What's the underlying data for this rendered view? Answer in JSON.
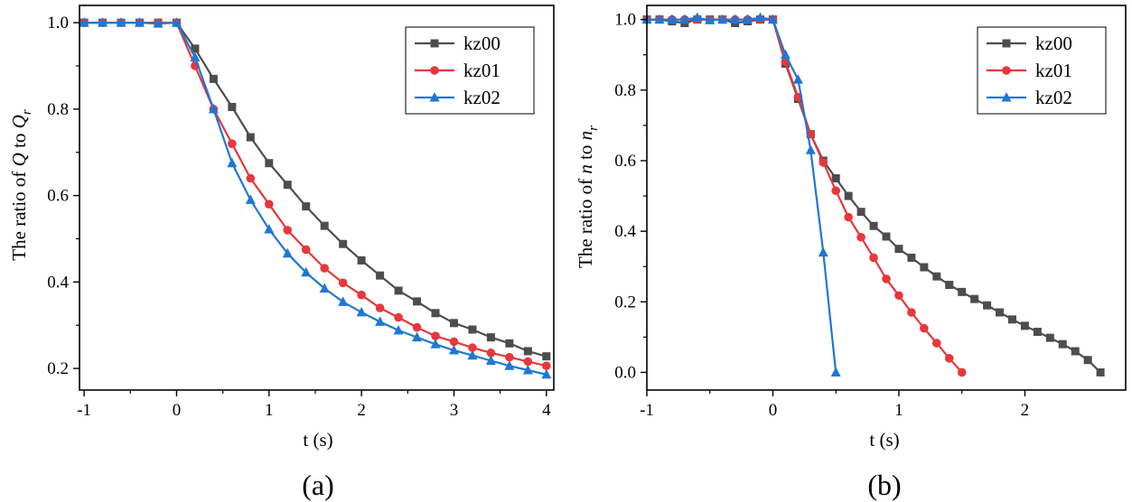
{
  "chart_data": [
    {
      "type": "line",
      "panel_label": "(a)",
      "xlabel": "t (s)",
      "ylabel": {
        "text": "The ratio of ",
        "var1": "Q",
        "mid": " to ",
        "var2": "Q",
        "sub": "r"
      },
      "xlim": [
        -1.05,
        4.08
      ],
      "ylim": [
        0.15,
        1.04
      ],
      "xticks": [
        -1,
        0,
        1,
        2,
        3,
        4
      ],
      "xtick_labels": [
        "-1",
        "0",
        "1",
        "2",
        "3",
        "4"
      ],
      "yticks": [
        0.2,
        0.4,
        0.6,
        0.8,
        1.0
      ],
      "ytick_labels": [
        "0.2",
        "0.4",
        "0.6",
        "0.8",
        "1.0"
      ],
      "legend_position": "top-right",
      "series": [
        {
          "name": "kz00",
          "color": "#4d4d4d",
          "marker": "square",
          "x": [
            -1.0,
            -0.8,
            -0.6,
            -0.4,
            -0.2,
            0.0,
            0.2,
            0.4,
            0.6,
            0.8,
            1.0,
            1.2,
            1.4,
            1.6,
            1.8,
            2.0,
            2.2,
            2.4,
            2.6,
            2.8,
            3.0,
            3.2,
            3.4,
            3.6,
            3.8,
            4.0
          ],
          "y": [
            1.0,
            1.0,
            1.0,
            1.0,
            1.0,
            1.0,
            0.94,
            0.87,
            0.805,
            0.735,
            0.675,
            0.625,
            0.575,
            0.53,
            0.488,
            0.45,
            0.415,
            0.38,
            0.355,
            0.328,
            0.305,
            0.29,
            0.272,
            0.258,
            0.24,
            0.228
          ]
        },
        {
          "name": "kz01",
          "color": "#e8373a",
          "marker": "circle",
          "x": [
            -1.0,
            -0.8,
            -0.6,
            -0.4,
            -0.2,
            0.0,
            0.2,
            0.4,
            0.6,
            0.8,
            1.0,
            1.2,
            1.4,
            1.6,
            1.8,
            2.0,
            2.2,
            2.4,
            2.6,
            2.8,
            3.0,
            3.2,
            3.4,
            3.6,
            3.8,
            4.0
          ],
          "y": [
            1.0,
            1.0,
            1.0,
            1.0,
            1.0,
            1.0,
            0.9,
            0.8,
            0.72,
            0.64,
            0.58,
            0.52,
            0.475,
            0.432,
            0.398,
            0.37,
            0.34,
            0.318,
            0.295,
            0.275,
            0.262,
            0.248,
            0.236,
            0.226,
            0.216,
            0.206
          ]
        },
        {
          "name": "kz02",
          "color": "#1f77d4",
          "marker": "triangle",
          "x": [
            -1.0,
            -0.8,
            -0.6,
            -0.4,
            -0.2,
            0.0,
            0.2,
            0.4,
            0.6,
            0.8,
            1.0,
            1.2,
            1.4,
            1.6,
            1.8,
            2.0,
            2.2,
            2.4,
            2.6,
            2.8,
            3.0,
            3.2,
            3.4,
            3.6,
            3.8,
            4.0
          ],
          "y": [
            1.0,
            1.0,
            1.0,
            1.0,
            0.998,
            1.0,
            0.92,
            0.8,
            0.675,
            0.59,
            0.522,
            0.466,
            0.422,
            0.385,
            0.354,
            0.33,
            0.308,
            0.288,
            0.272,
            0.256,
            0.242,
            0.23,
            0.218,
            0.206,
            0.196,
            0.186
          ]
        }
      ]
    },
    {
      "type": "line",
      "panel_label": "(b)",
      "xlabel": "t (s)",
      "ylabel": {
        "text": "The ratio of ",
        "var1": "n",
        "mid": " to ",
        "var2": "n",
        "sub": "r"
      },
      "xlim": [
        -1.0,
        2.8
      ],
      "ylim": [
        -0.05,
        1.04
      ],
      "xticks": [
        -1,
        0,
        1,
        2
      ],
      "xtick_labels": [
        "-1",
        "0",
        "1",
        "2"
      ],
      "yticks": [
        0.0,
        0.2,
        0.4,
        0.6,
        0.8,
        1.0
      ],
      "ytick_labels": [
        "0.0",
        "0.2",
        "0.4",
        "0.6",
        "0.8",
        "1.0"
      ],
      "legend_position": "top-right",
      "series": [
        {
          "name": "kz00",
          "color": "#4d4d4d",
          "marker": "square",
          "x": [
            -1.0,
            -0.9,
            -0.8,
            -0.7,
            -0.6,
            -0.5,
            -0.4,
            -0.3,
            -0.2,
            -0.1,
            0.0,
            0.1,
            0.2,
            0.3,
            0.4,
            0.5,
            0.6,
            0.7,
            0.8,
            0.9,
            1.0,
            1.1,
            1.2,
            1.3,
            1.4,
            1.5,
            1.6,
            1.7,
            1.8,
            1.9,
            2.0,
            2.1,
            2.2,
            2.3,
            2.4,
            2.5,
            2.6
          ],
          "y": [
            1.0,
            1.0,
            0.995,
            0.99,
            1.0,
            1.0,
            1.0,
            0.99,
            0.995,
            1.0,
            1.0,
            0.875,
            0.775,
            0.675,
            0.6,
            0.55,
            0.5,
            0.455,
            0.415,
            0.385,
            0.35,
            0.325,
            0.298,
            0.272,
            0.248,
            0.228,
            0.208,
            0.19,
            0.17,
            0.15,
            0.132,
            0.115,
            0.098,
            0.08,
            0.06,
            0.035,
            0.0
          ]
        },
        {
          "name": "kz01",
          "color": "#e8373a",
          "marker": "circle",
          "x": [
            -1.0,
            -0.9,
            -0.8,
            -0.7,
            -0.6,
            -0.5,
            -0.4,
            -0.3,
            -0.2,
            -0.1,
            0.0,
            0.1,
            0.2,
            0.3,
            0.4,
            0.5,
            0.6,
            0.7,
            0.8,
            0.9,
            1.0,
            1.1,
            1.2,
            1.3,
            1.4,
            1.5
          ],
          "y": [
            1.0,
            1.0,
            1.0,
            1.0,
            1.0,
            1.0,
            1.0,
            1.0,
            1.0,
            1.0,
            1.0,
            0.88,
            0.78,
            0.675,
            0.595,
            0.515,
            0.44,
            0.383,
            0.325,
            0.265,
            0.218,
            0.17,
            0.125,
            0.083,
            0.04,
            0.0
          ]
        },
        {
          "name": "kz02",
          "color": "#1f77d4",
          "marker": "triangle",
          "x": [
            -1.0,
            -0.9,
            -0.8,
            -0.7,
            -0.6,
            -0.5,
            -0.4,
            -0.3,
            -0.2,
            -0.1,
            0.0,
            0.1,
            0.2,
            0.3,
            0.4,
            0.5
          ],
          "y": [
            1.0,
            1.0,
            1.0,
            1.0,
            1.005,
            0.998,
            1.0,
            1.0,
            1.0,
            1.005,
            1.0,
            0.9,
            0.83,
            0.63,
            0.34,
            0.0
          ]
        }
      ]
    }
  ]
}
